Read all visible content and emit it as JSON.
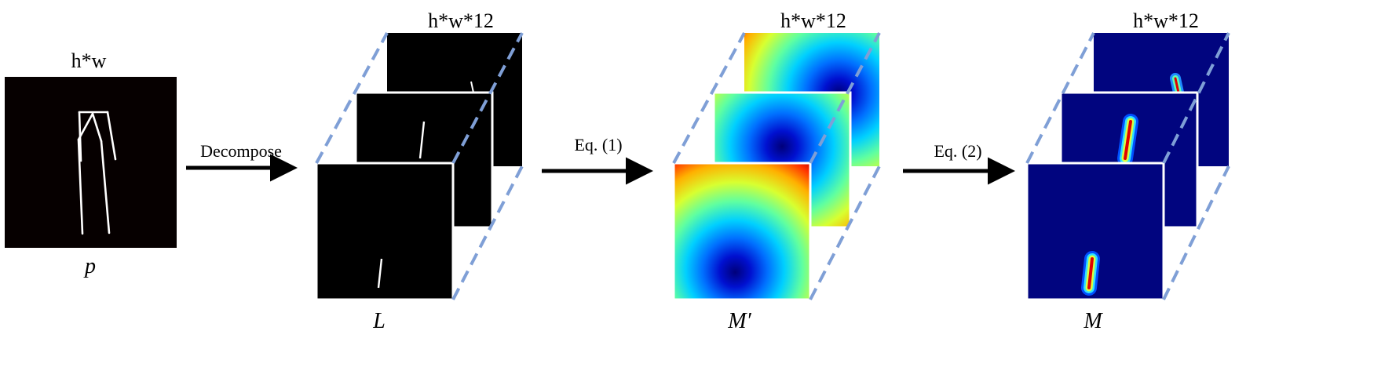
{
  "input": {
    "dims_label": "h*w",
    "symbol": "p"
  },
  "stage_L": {
    "dims_label": "h*w*12",
    "symbol": "L"
  },
  "stage_Mprime": {
    "dims_label": "h*w*12",
    "symbol": "M′"
  },
  "stage_M": {
    "dims_label": "h*w*12",
    "symbol": "M"
  },
  "arrows": {
    "decompose": "Decompose",
    "eq1": "Eq. (1)",
    "eq2": "Eq. (2)"
  },
  "colors": {
    "background": "#ffffff",
    "frame_black": "#000000",
    "frame_border": "#ffffff",
    "dashed_guide": "#7f9fd6",
    "arrow": "#000000",
    "heat_low": "#00007f",
    "heat_high": "#ff0000"
  }
}
